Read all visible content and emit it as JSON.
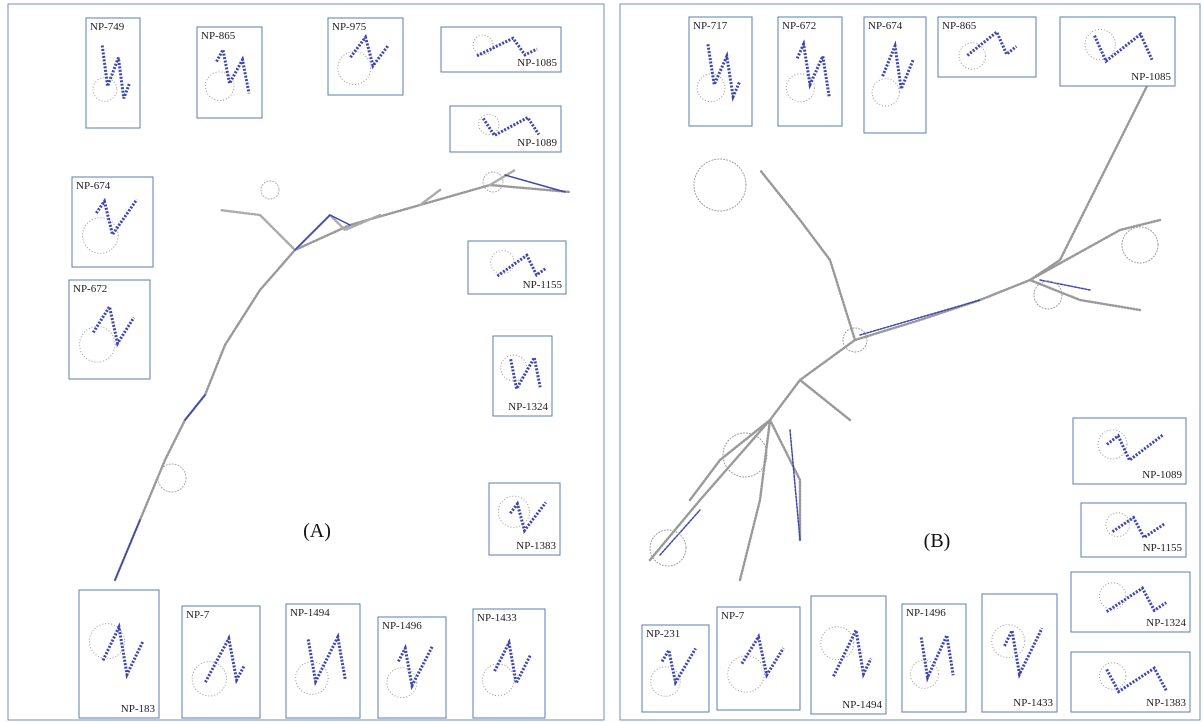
{
  "panels": [
    {
      "label": "(A)",
      "insets": [
        {
          "label": "NP-749"
        },
        {
          "label": "NP-865"
        },
        {
          "label": "NP-975"
        },
        {
          "label": "NP-1085"
        },
        {
          "label": "NP-1089"
        },
        {
          "label": "NP-674"
        },
        {
          "label": "NP-672"
        },
        {
          "label": "NP-1155"
        },
        {
          "label": "NP-1324"
        },
        {
          "label": "NP-1383"
        },
        {
          "label": "NP-183"
        },
        {
          "label": "NP-7"
        },
        {
          "label": "NP-1494"
        },
        {
          "label": "NP-1496"
        },
        {
          "label": "NP-1433"
        }
      ]
    },
    {
      "label": "(B)",
      "insets": [
        {
          "label": "NP-717"
        },
        {
          "label": "NP-672"
        },
        {
          "label": "NP-674"
        },
        {
          "label": "NP-865"
        },
        {
          "label": "NP-1085"
        },
        {
          "label": "NP-1089"
        },
        {
          "label": "NP-1155"
        },
        {
          "label": "NP-1324"
        },
        {
          "label": "NP-1383"
        },
        {
          "label": "NP-231"
        },
        {
          "label": "NP-7"
        },
        {
          "label": "NP-1494"
        },
        {
          "label": "NP-1496"
        },
        {
          "label": "NP-1433"
        }
      ]
    }
  ]
}
